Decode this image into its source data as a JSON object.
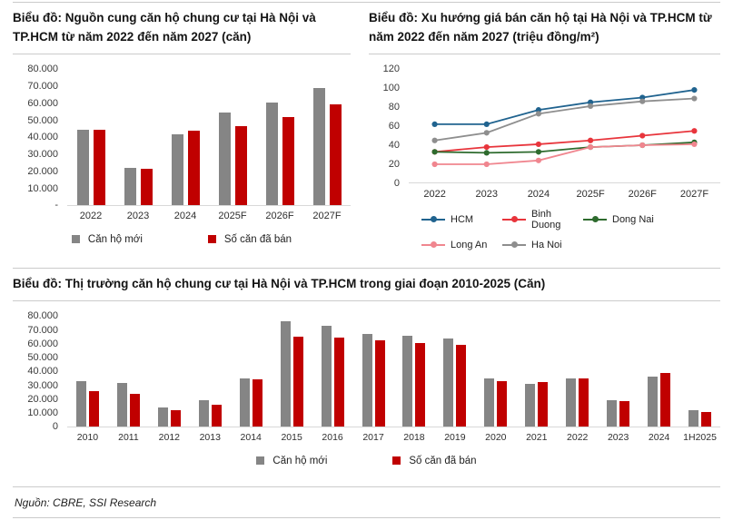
{
  "colors": {
    "bar_gray": "#858585",
    "bar_red": "#c00000",
    "rule_gray": "#cbcbcb",
    "axis_line": "#d8d8d8"
  },
  "footer": {
    "source": "Nguồn: CBRE, SSI Research"
  },
  "chart_data": [
    {
      "type": "bar",
      "title": "Biểu đồ: Nguồn cung căn hộ chung cư tại Hà Nội và TP.HCM từ năm 2022 đến năm 2027 (căn)",
      "categories": [
        "2022",
        "2023",
        "2024",
        "2025F",
        "2026F",
        "2027F"
      ],
      "series": [
        {
          "name": "Căn hộ mới",
          "color": "#858585",
          "values": [
            44000,
            22000,
            41500,
            54500,
            60500,
            69000
          ]
        },
        {
          "name": "Số căn đã bán",
          "color": "#c00000",
          "values": [
            44500,
            21500,
            43500,
            46500,
            51500,
            59000
          ]
        }
      ],
      "ylim": [
        0,
        80000
      ],
      "ytick_step": 10000,
      "ytick_labels": [
        "80.000",
        "70.000",
        "60.000",
        "50.000",
        "40.000",
        "30.000",
        "20.000",
        "10.000",
        "-"
      ],
      "grid": false,
      "legend_position": "bottom"
    },
    {
      "type": "line",
      "title": "Biểu đồ: Xu hướng giá bán căn hộ tại Hà Nội và TP.HCM từ năm 2022 đến năm 2027 (triệu đồng/m²)",
      "categories": [
        "2022",
        "2023",
        "2024",
        "2025F",
        "2026F",
        "2027F"
      ],
      "series": [
        {
          "name": "HCM",
          "color": "#20638f",
          "values": [
            62,
            62,
            77,
            85,
            90,
            98
          ]
        },
        {
          "name": "Binh Duong",
          "color": "#e8353c",
          "values": [
            33,
            38,
            41,
            45,
            50,
            55
          ]
        },
        {
          "name": "Dong Nai",
          "color": "#2e6b2e",
          "values": [
            33,
            32,
            33,
            38,
            40,
            43
          ]
        },
        {
          "name": "Long An",
          "color": "#f0868f",
          "values": [
            20,
            20,
            24,
            38,
            40,
            41
          ]
        },
        {
          "name": "Ha Noi",
          "color": "#8e8e8e",
          "values": [
            45,
            53,
            73,
            81,
            86,
            89
          ]
        }
      ],
      "ylim": [
        0,
        120
      ],
      "ytick_step": 20,
      "ytick_labels": [
        "120",
        "100",
        "80",
        "60",
        "40",
        "20",
        "0"
      ],
      "grid": false,
      "legend_position": "bottom",
      "legend_rows": [
        [
          "HCM",
          "Binh Duong",
          "Dong Nai"
        ],
        [
          "Long An",
          "Ha Noi"
        ]
      ]
    },
    {
      "type": "bar",
      "title": "Biểu đồ: Thị trường căn hộ chung cư tại Hà Nội và TP.HCM trong giai đoạn 2010-2025 (Căn)",
      "categories": [
        "2010",
        "2011",
        "2012",
        "2013",
        "2014",
        "2015",
        "2016",
        "2017",
        "2018",
        "2019",
        "2020",
        "2021",
        "2022",
        "2023",
        "2024",
        "1H2025"
      ],
      "series": [
        {
          "name": "Căn hộ mới",
          "color": "#858585",
          "values": [
            33000,
            31500,
            13500,
            19000,
            35000,
            76000,
            72500,
            67000,
            65500,
            63500,
            34500,
            31000,
            34500,
            19000,
            36000,
            12000
          ]
        },
        {
          "name": "Số căn đã bán",
          "color": "#c00000",
          "values": [
            25500,
            23500,
            12000,
            16000,
            34000,
            65000,
            64500,
            62000,
            60500,
            59000,
            33000,
            32000,
            34500,
            18500,
            38500,
            10500
          ]
        }
      ],
      "ylim": [
        0,
        80000
      ],
      "ytick_step": 10000,
      "ytick_labels": [
        "80.000",
        "70.000",
        "60.000",
        "50.000",
        "40.000",
        "30.000",
        "20.000",
        "10.000",
        "0"
      ],
      "grid": false,
      "legend_position": "bottom"
    }
  ]
}
